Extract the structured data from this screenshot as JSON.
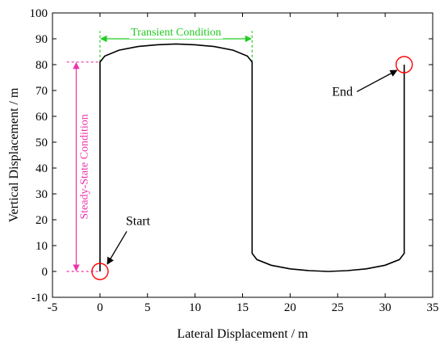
{
  "chart_data": {
    "type": "line",
    "xlabel": "Lateral Displacement / m",
    "ylabel": "Vertical Displacement / m",
    "xlim": [
      -5,
      35
    ],
    "ylim": [
      -10,
      100
    ],
    "xticks": [
      -5,
      0,
      5,
      10,
      15,
      20,
      25,
      30,
      35
    ],
    "yticks": [
      -10,
      0,
      10,
      20,
      30,
      40,
      50,
      60,
      70,
      80,
      90,
      100
    ],
    "grid": false,
    "series": [
      {
        "color": "#000000",
        "x": [
          0,
          0,
          0.5,
          2,
          4,
          6,
          8,
          10,
          12,
          14,
          15.5,
          16,
          16,
          16.5,
          18,
          20,
          22,
          24,
          26,
          28,
          30,
          31.5,
          32,
          32
        ],
        "y": [
          0,
          81,
          83.3,
          85.6,
          87,
          87.7,
          88,
          87.7,
          87,
          85.6,
          83.3,
          81,
          7,
          4.6,
          2.4,
          1,
          0.3,
          0,
          0.3,
          1,
          2.4,
          4.6,
          7,
          80
        ]
      }
    ],
    "annotations": {
      "transient": {
        "text": "Transient Condition",
        "color": "#22cc22",
        "x_range": [
          0,
          16
        ],
        "y": 90,
        "dashed_lines": {
          "x": [
            0,
            16
          ],
          "y_range": [
            81,
            93
          ]
        }
      },
      "steady": {
        "text": "Steady-State Condition",
        "color": "#ee33aa",
        "x": -2.5,
        "y_range": [
          0,
          81
        ],
        "dashed_lines": {
          "y": [
            0,
            81
          ],
          "x_range": [
            -3.5,
            0
          ]
        }
      },
      "start": {
        "text": "Start",
        "point": [
          0,
          0
        ],
        "text_at": [
          4,
          18
        ]
      },
      "end": {
        "text": "End",
        "point": [
          32,
          80
        ],
        "text_at": [
          25.5,
          68
        ]
      },
      "marker_color": "#ff0000"
    }
  }
}
